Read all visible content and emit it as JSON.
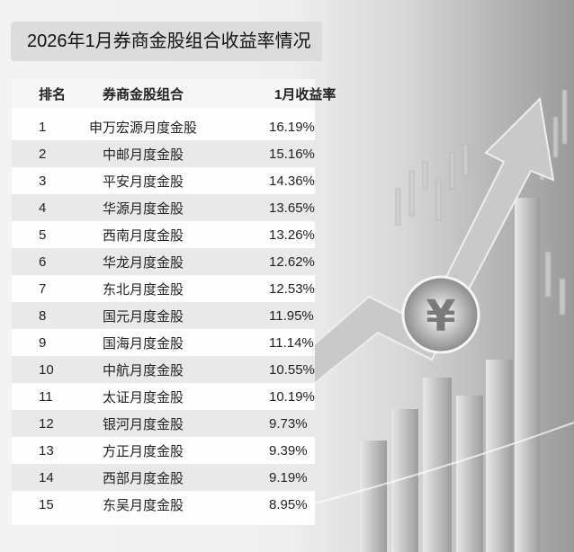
{
  "title": "2026年1月券商金股组合收益率情况",
  "chart_data": {
    "type": "table",
    "title": "2026年1月券商金股组合收益率情况",
    "columns": [
      "排名",
      "券商金股组合",
      "1月收益率"
    ],
    "rows": [
      [
        "1",
        "申万宏源月度金股",
        "16.19%"
      ],
      [
        "2",
        "中邮月度金股",
        "15.16%"
      ],
      [
        "3",
        "平安月度金股",
        "14.36%"
      ],
      [
        "4",
        "华源月度金股",
        "13.65%"
      ],
      [
        "5",
        "西南月度金股",
        "13.26%"
      ],
      [
        "6",
        "华龙月度金股",
        "12.62%"
      ],
      [
        "7",
        "东北月度金股",
        "12.53%"
      ],
      [
        "8",
        "国元月度金股",
        "11.95%"
      ],
      [
        "9",
        "国海月度金股",
        "11.14%"
      ],
      [
        "10",
        "中航月度金股",
        "10.55%"
      ],
      [
        "11",
        "太证月度金股",
        "10.19%"
      ],
      [
        "12",
        "银河月度金股",
        "9.73%"
      ],
      [
        "13",
        "方正月度金股",
        "9.39%"
      ],
      [
        "14",
        "西部月度金股",
        "9.19%"
      ],
      [
        "15",
        "东吴月度金股",
        "8.95%"
      ]
    ]
  },
  "background": {
    "icons": [
      "yuan-coin-icon",
      "rising-arrow-icon",
      "bar-chart-icon",
      "candlestick-chart-icon"
    ],
    "palette": "grayscale"
  }
}
